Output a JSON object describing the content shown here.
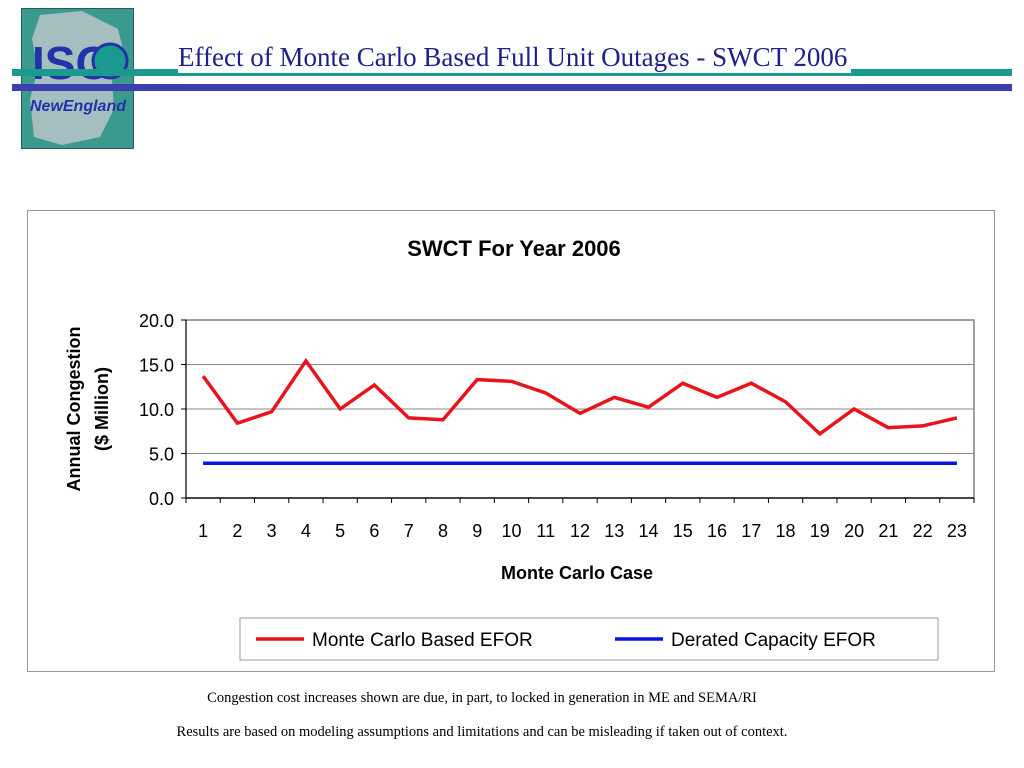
{
  "header": {
    "title": "Effect of Monte Carlo Based Full Unit Outages - SWCT 2006",
    "logo_text_top": "ISO",
    "logo_text_bottom": "NewEngland"
  },
  "colors": {
    "teal": "#1a9a8e",
    "blue_bar": "#3b3fb0",
    "title_text": "#1f1f8a",
    "series_monte_carlo": "#e8141c",
    "series_derated": "#0a14e0"
  },
  "chart_data": {
    "type": "line",
    "title": "SWCT For Year 2006",
    "xlabel": "Monte Carlo Case",
    "ylabel_line1": "Annual Congestion",
    "ylabel_line2": "($ Million)",
    "categories": [
      "1",
      "2",
      "3",
      "4",
      "5",
      "6",
      "7",
      "8",
      "9",
      "10",
      "11",
      "12",
      "13",
      "14",
      "15",
      "16",
      "17",
      "18",
      "19",
      "20",
      "21",
      "22",
      "23"
    ],
    "yticks": [
      "0.0",
      "5.0",
      "10.0",
      "15.0",
      "20.0"
    ],
    "ylim": [
      0,
      20
    ],
    "grid": "horizontal",
    "legend_position": "bottom",
    "series": [
      {
        "name": "Monte Carlo Based EFOR",
        "color": "#e8141c",
        "values": [
          13.7,
          8.4,
          9.7,
          15.4,
          10.0,
          12.7,
          9.0,
          8.8,
          13.3,
          13.1,
          11.8,
          9.5,
          11.3,
          10.2,
          12.9,
          11.3,
          12.9,
          10.8,
          7.2,
          10.0,
          7.9,
          8.1,
          9.0
        ]
      },
      {
        "name": "Derated Capacity EFOR",
        "color": "#0a14e0",
        "values": [
          3.9,
          3.9,
          3.9,
          3.9,
          3.9,
          3.9,
          3.9,
          3.9,
          3.9,
          3.9,
          3.9,
          3.9,
          3.9,
          3.9,
          3.9,
          3.9,
          3.9,
          3.9,
          3.9,
          3.9,
          3.9,
          3.9,
          3.9
        ]
      }
    ]
  },
  "notes": {
    "line1": "Congestion cost increases shown are due, in part, to locked in generation in ME and SEMA/RI",
    "line2": "Results are based on modeling assumptions and limitations and can be misleading if taken out of context."
  }
}
